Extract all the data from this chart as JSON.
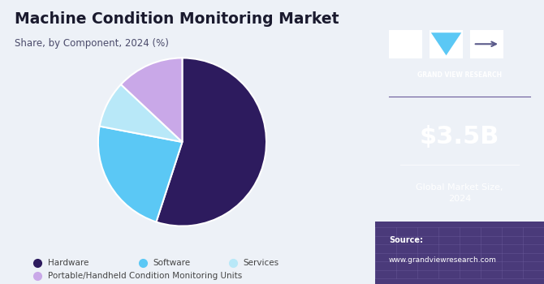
{
  "title": "Machine Condition Monitoring Market",
  "subtitle": "Share, by Component, 2024 (%)",
  "slices": [
    55,
    23,
    9,
    13
  ],
  "labels": [
    "Hardware",
    "Software",
    "Services",
    "Portable/Handheld Condition Monitoring Units"
  ],
  "colors": [
    "#2d1b5e",
    "#5bc8f5",
    "#b8e8f8",
    "#c9a8e8"
  ],
  "startangle": 90,
  "bg_color": "#edf1f7",
  "sidebar_color": "#3b1f6e",
  "title_color": "#1a1a2e",
  "subtitle_color": "#4a4a6a",
  "market_size": "$3.5B",
  "market_label": "Global Market Size,\n2024",
  "source_label": "Source:",
  "source_url": "www.grandviewresearch.com",
  "legend_color": "#444444",
  "gvr_text": "GRAND VIEW RESEARCH",
  "logo_white": "#ffffff",
  "logo_blue": "#5bc8f5",
  "sidebar_bottom": "#4a3a7a",
  "grid_color": "#7a6aaa"
}
